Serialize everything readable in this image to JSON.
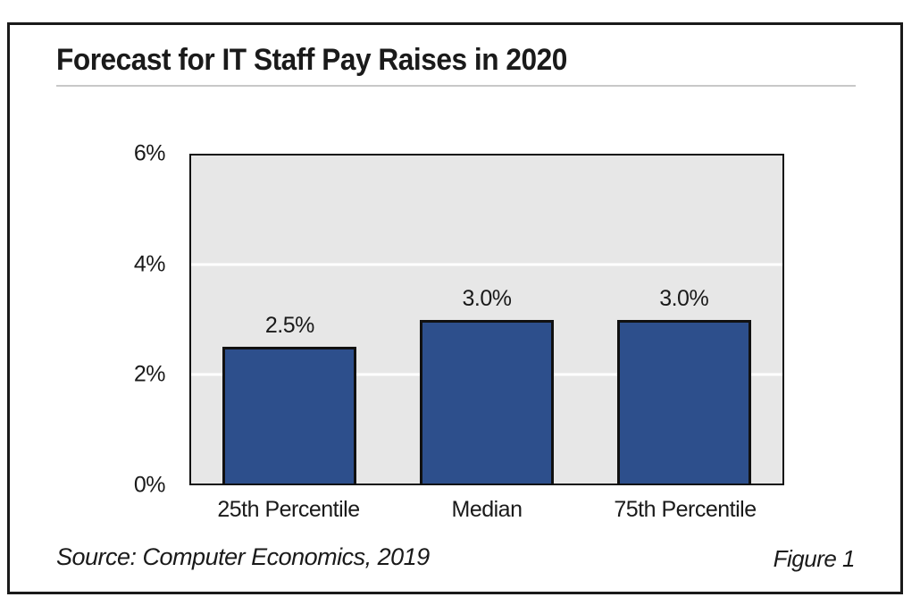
{
  "figure": {
    "source": "Source: Computer Economics, 2019",
    "figure_label": "Figure 1"
  },
  "chart_data": {
    "type": "bar",
    "title": "Forecast for IT Staff Pay Raises in 2020",
    "categories": [
      "25th Percentile",
      "Median",
      "75th Percentile"
    ],
    "values": [
      2.5,
      3.0,
      3.0
    ],
    "data_labels": [
      "2.5%",
      "3.0%",
      "3.0%"
    ],
    "ylim": [
      0,
      6
    ],
    "yticks": [
      0,
      2,
      4,
      6
    ],
    "ytick_labels": [
      "0%",
      "2%",
      "4%",
      "6%"
    ],
    "gridlines": [
      2,
      4
    ],
    "grid": true,
    "legend": "none",
    "colors": {
      "bar_fill": "#2d4f8c",
      "bar_border": "#111111",
      "plot_background": "#e7e7e7",
      "gridline": "#ffffff",
      "frame_border": "#1a1a1a",
      "title_rule": "#c8c8c8",
      "text": "#1a1a1a"
    }
  }
}
